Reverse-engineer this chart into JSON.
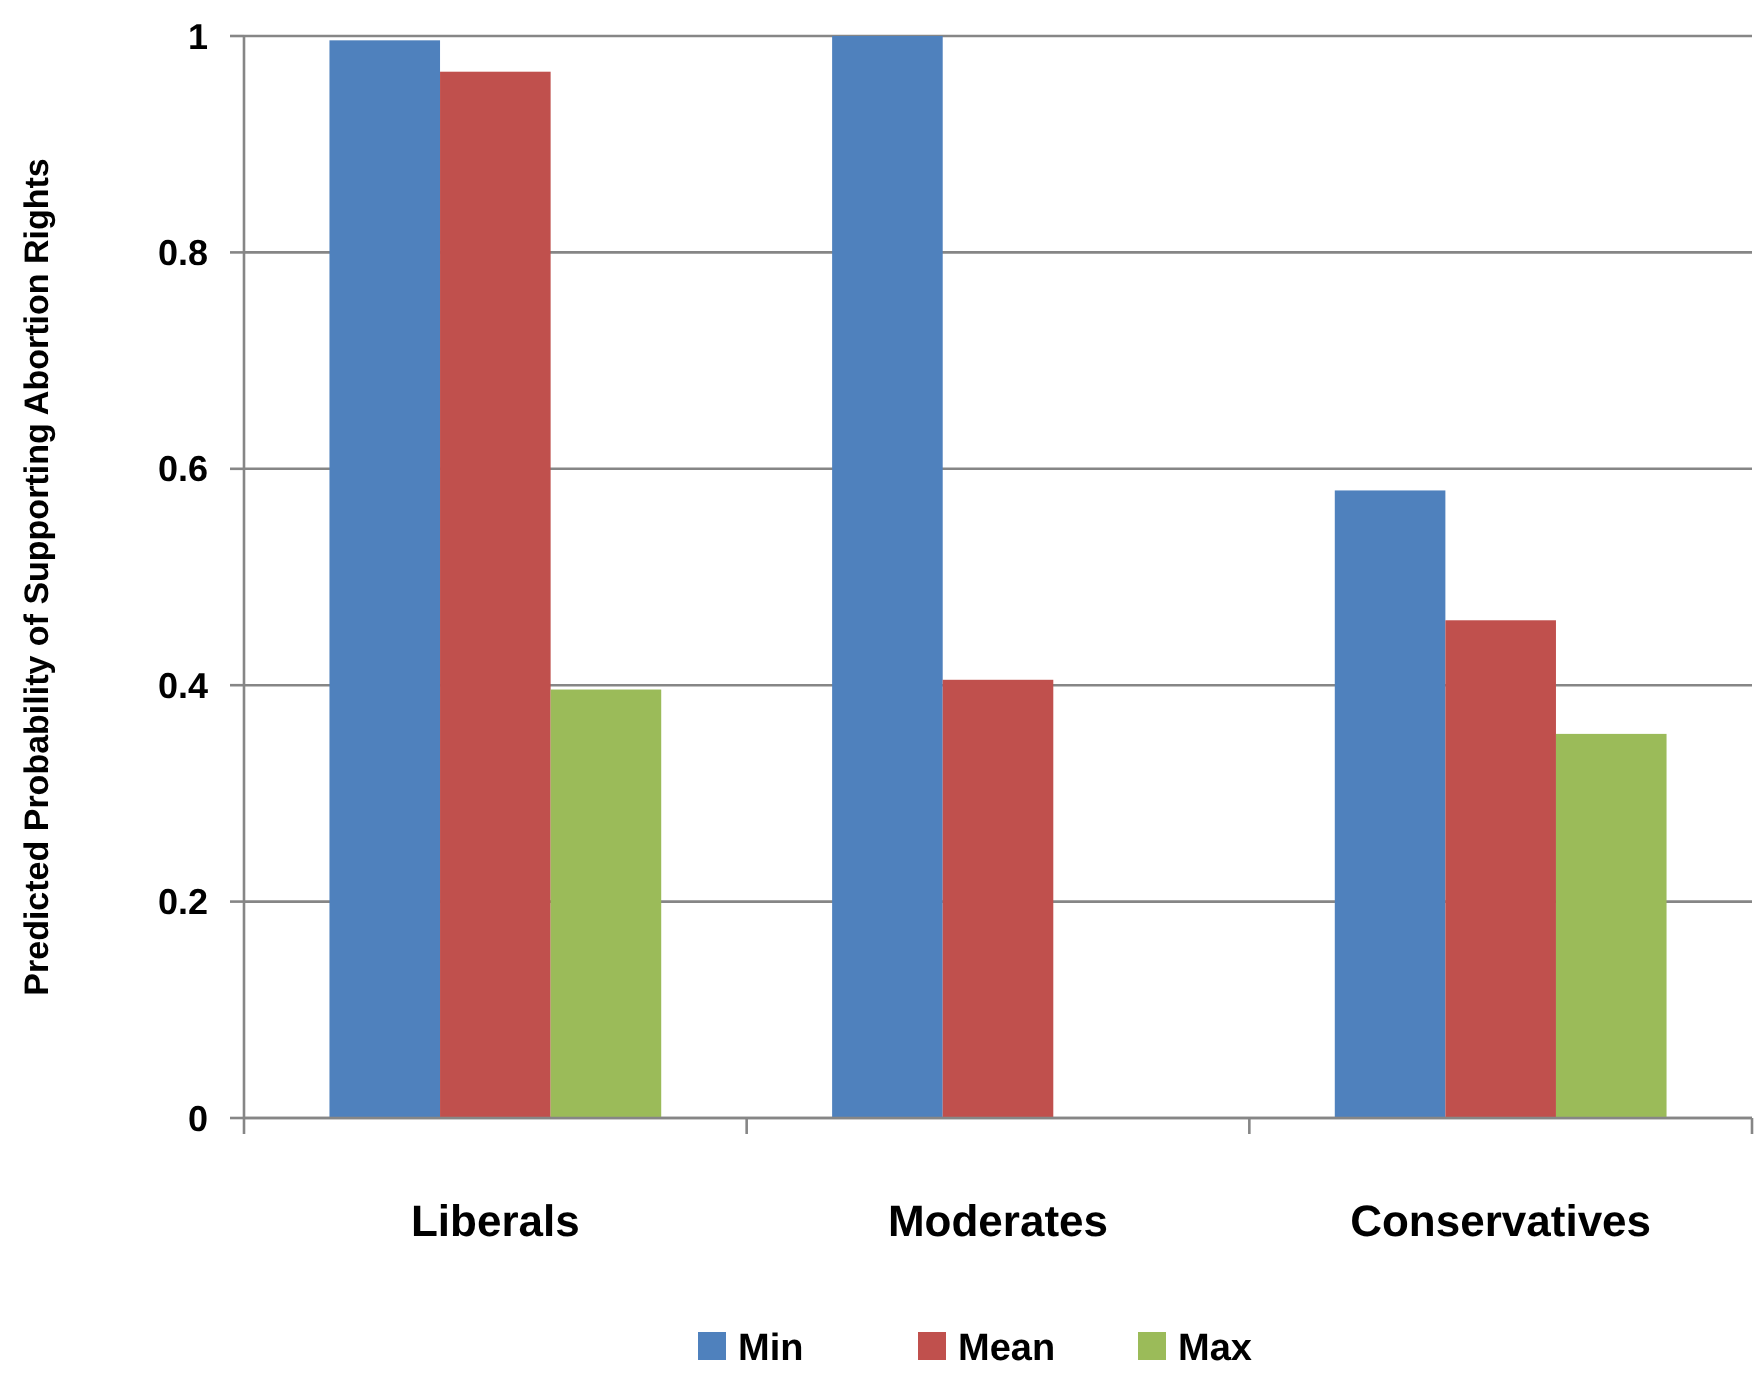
{
  "chart_data": {
    "type": "bar",
    "ylabel": "Predicted Probability of Supporting Abortion Rights",
    "categories": [
      "Liberals",
      "Moderates",
      "Conservatives"
    ],
    "series": [
      {
        "name": "Min",
        "color": "#4f81bd",
        "values": [
          0.996,
          1.0,
          0.58
        ]
      },
      {
        "name": "Mean",
        "color": "#c0504d",
        "values": [
          0.967,
          0.405,
          0.46
        ]
      },
      {
        "name": "Max",
        "color": "#9bbb59",
        "values": [
          0.396,
          0,
          0.355
        ]
      }
    ],
    "ylim": [
      0,
      1
    ],
    "yticks": [
      0,
      0.2,
      0.4,
      0.6,
      0.8,
      1
    ],
    "grid": "y",
    "legend": "bottom"
  }
}
